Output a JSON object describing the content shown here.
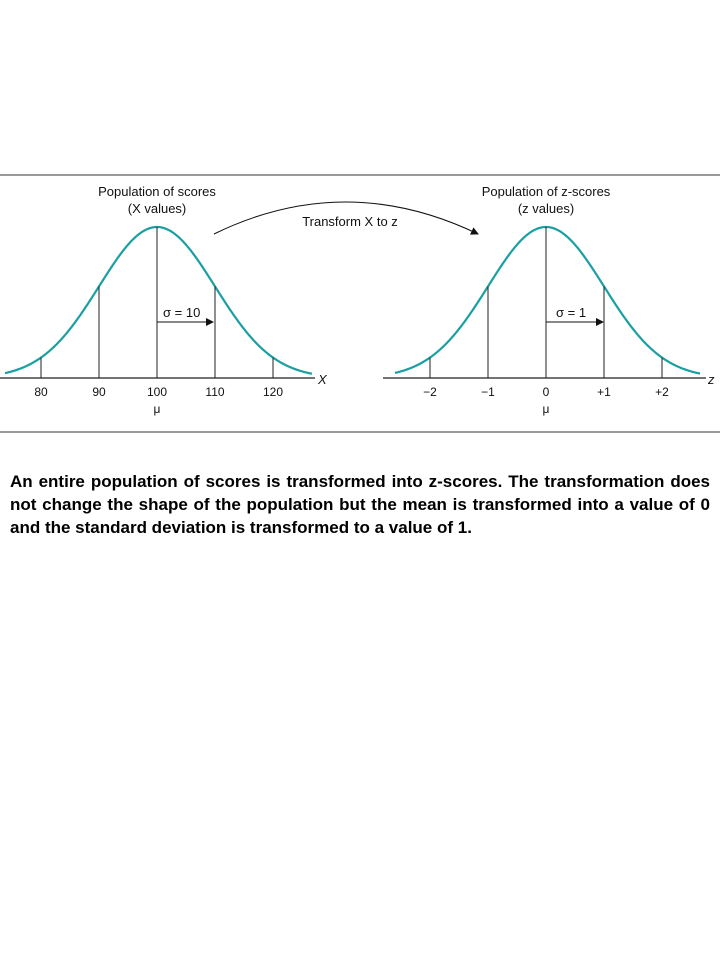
{
  "figure": {
    "left_panel": {
      "title_line1": "Population of scores",
      "title_line2": "(X values)",
      "sigma_label": "σ = 10",
      "axis_name": "X",
      "mean_symbol": "μ",
      "ticks": [
        "80",
        "90",
        "100",
        "110",
        "120"
      ]
    },
    "right_panel": {
      "title_line1": "Population of z-scores",
      "title_line2": "(z values)",
      "sigma_label": "σ = 1",
      "axis_name": "z",
      "mean_symbol": "μ",
      "ticks": [
        "−2",
        "−1",
        "0",
        "+1",
        "+2"
      ]
    },
    "transform_label": "Transform X to z",
    "curve_color": "#1a9fa3"
  },
  "caption": "An entire population of scores is transformed into z-scores. The transformation does not change the shape of the population but the mean is transformed into a value of 0 and the standard deviation is transformed to a value of 1."
}
